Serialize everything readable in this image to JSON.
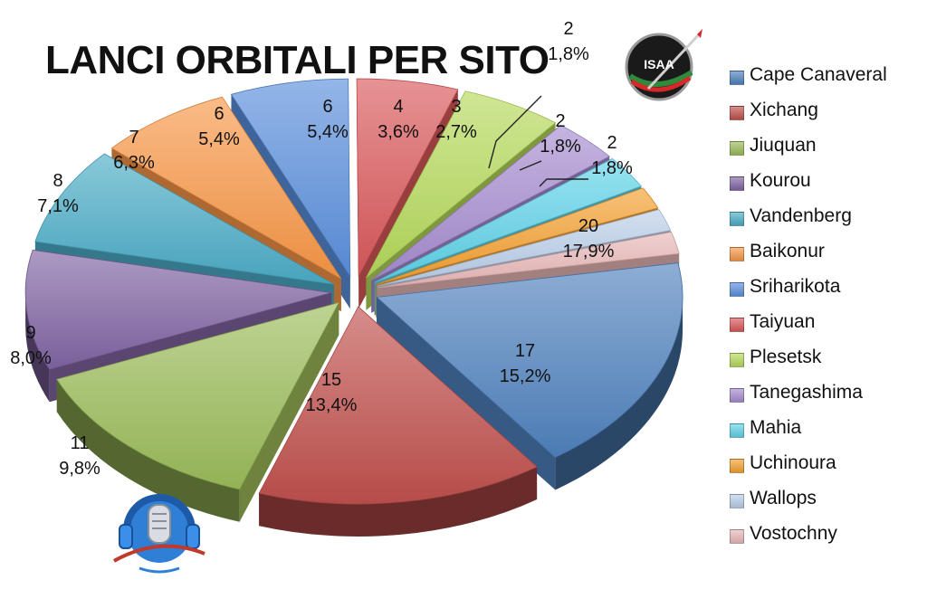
{
  "chart_data": {
    "type": "pie",
    "title": "LANCI ORBITALI PER SITO",
    "categories": [
      "Cape Canaveral",
      "Xichang",
      "Jiuquan",
      "Kourou",
      "Vandenberg",
      "Baikonur",
      "Sriharikota",
      "Taiyuan",
      "Plesetsk",
      "Tanegashima",
      "Mahia",
      "Uchinoura",
      "Wallops",
      "Vostochny"
    ],
    "values": [
      20,
      17,
      15,
      11,
      9,
      8,
      7,
      6,
      6,
      4,
      3,
      2,
      2,
      2
    ],
    "percent_labels": [
      "17,9%",
      "15,2%",
      "13,4%",
      "9,8%",
      "8,0%",
      "7,1%",
      "6,3%",
      "5,4%",
      "5,4%",
      "3,6%",
      "2,7%",
      "1,8%",
      "1,8%",
      "1,8%"
    ],
    "colors": [
      "#4f81bd",
      "#c0504d",
      "#9bbb59",
      "#8064a2",
      "#4bacc6",
      "#f79646",
      "#5a8fdc",
      "#d9585a",
      "#b5d95b",
      "#a58ccf",
      "#5fd2e8",
      "#f4a030",
      "#b9cde8",
      "#e8b7b7"
    ],
    "legend_position": "right",
    "style": "3d-exploded"
  },
  "logos": {
    "isaa": "ISAA",
    "podcast": "microphone-headphones-logo"
  }
}
